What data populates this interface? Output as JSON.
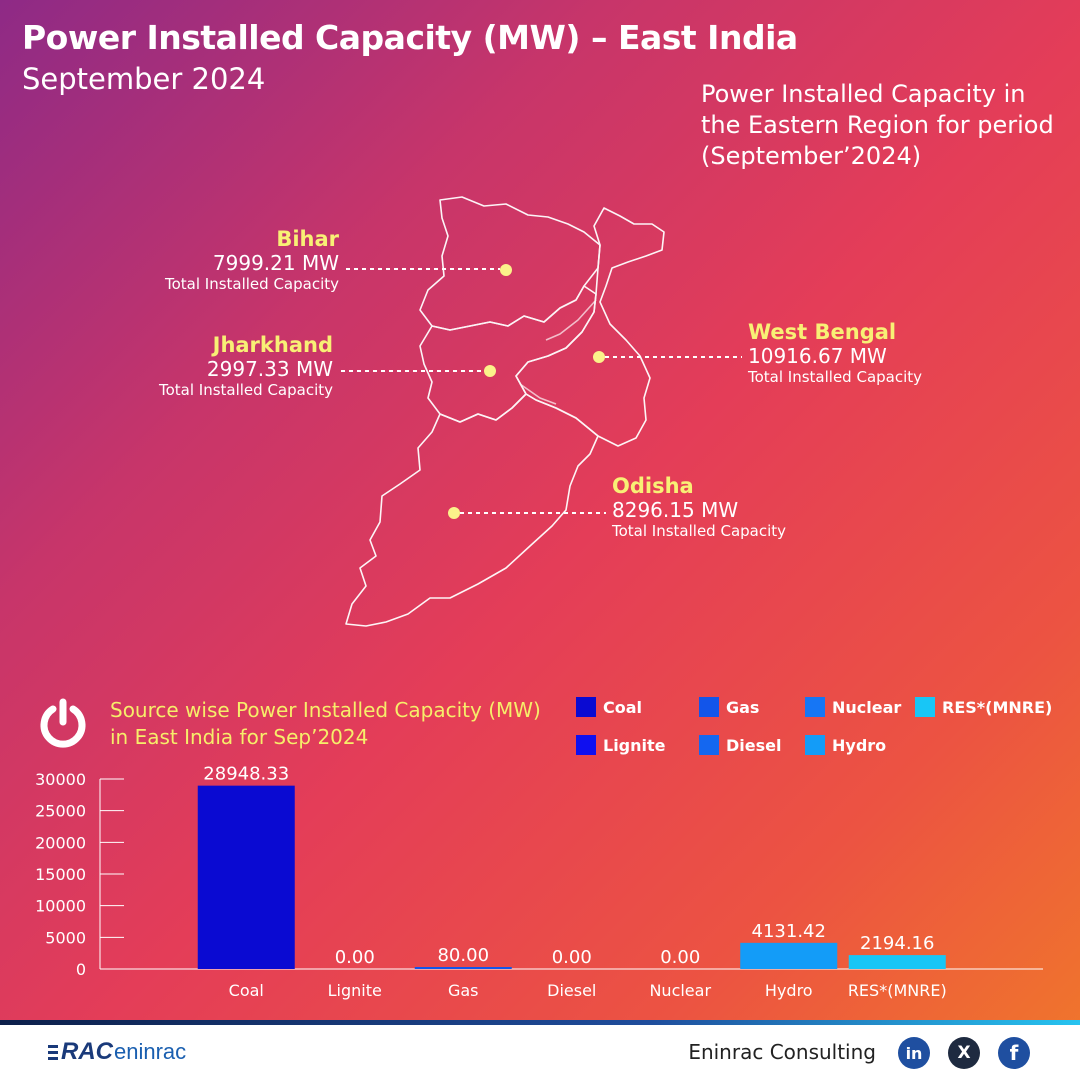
{
  "header": {
    "title": "Power Installed Capacity (MW) – East India",
    "subtitle": "September 2024"
  },
  "map": {
    "caption": "Power Installed Capacity in the Eastern Region for period (September’2024)",
    "states": [
      {
        "name": "Bihar",
        "value": "7999.21 MW",
        "caption": "Total Installed Capacity"
      },
      {
        "name": "Jharkhand",
        "value": "2997.33 MW",
        "caption": "Total Installed Capacity"
      },
      {
        "name": "West Bengal",
        "value": "10916.67 MW",
        "caption": "Total Installed Capacity"
      },
      {
        "name": "Odisha",
        "value": "8296.15 MW",
        "caption": "Total Installed Capacity"
      }
    ]
  },
  "chart_section": {
    "icon": "power-icon",
    "title_line1": "Source wise Power Installed Capacity (MW)",
    "title_line2": "in East India for Sep’2024"
  },
  "chart_data": {
    "type": "bar",
    "categories": [
      "Coal",
      "Lignite",
      "Gas",
      "Diesel",
      "Nuclear",
      "Hydro",
      "RES*(MNRE)"
    ],
    "values": [
      28948.33,
      0.0,
      80.0,
      0.0,
      0.0,
      4131.42,
      2194.16
    ],
    "value_labels": [
      "28948.33",
      "0.00",
      "80.00",
      "0.00",
      "0.00",
      "4131.42",
      "2194.16"
    ],
    "colors": [
      "#0a0ad2",
      "#0f0ff0",
      "#1255ea",
      "#1467f0",
      "#1676f5",
      "#139cf8",
      "#18c6f6"
    ],
    "ylim": [
      0,
      30000
    ],
    "yticks": [
      0,
      5000,
      10000,
      15000,
      20000,
      25000,
      30000
    ],
    "title": "Source wise Power Installed Capacity (MW) in East India for Sep’2024",
    "xlabel": "",
    "ylabel": "",
    "grid": false,
    "legend": [
      {
        "label": "Coal",
        "color": "#0a0ad2"
      },
      {
        "label": "Gas",
        "color": "#1255ea"
      },
      {
        "label": "Nuclear",
        "color": "#1676f5"
      },
      {
        "label": "RES*(MNRE)",
        "color": "#18c6f6"
      },
      {
        "label": "Lignite",
        "color": "#0f0ff0"
      },
      {
        "label": "Diesel",
        "color": "#1467f0"
      },
      {
        "label": "Hydro",
        "color": "#139cf8"
      }
    ],
    "legend_position": "top-right"
  },
  "footer": {
    "brand": "RAC eninrac",
    "brand_part1": "RAC",
    "brand_part2": "eninrac",
    "company": "Eninrac Consulting",
    "social": [
      {
        "icon": "linkedin-icon",
        "glyph": "in"
      },
      {
        "icon": "x-icon",
        "glyph": "X"
      },
      {
        "icon": "facebook-icon",
        "glyph": "f"
      }
    ]
  }
}
